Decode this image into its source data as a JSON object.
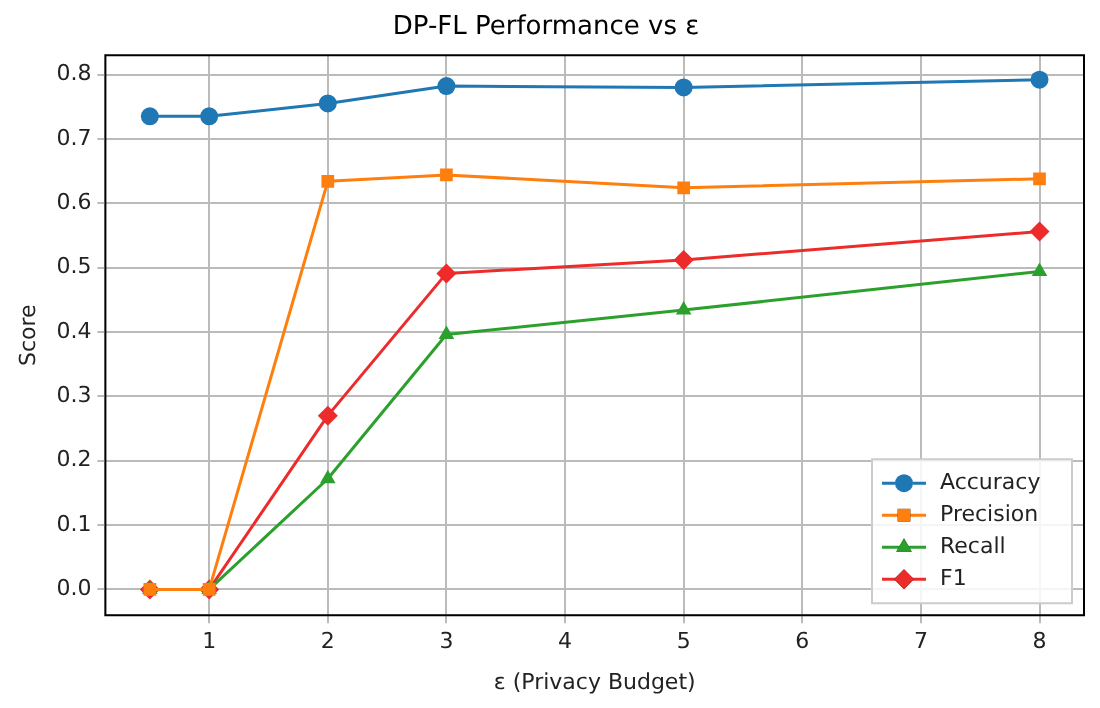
{
  "chart_data": {
    "type": "line",
    "title": "DP-FL Performance vs ε",
    "xlabel": "ε (Privacy Budget)",
    "ylabel": "Score",
    "x": [
      0.5,
      1,
      2,
      3,
      5,
      8
    ],
    "xlim": [
      0.125,
      8.375
    ],
    "xticks": [
      1,
      2,
      3,
      4,
      5,
      6,
      7,
      8
    ],
    "ylim": [
      -0.04,
      0.83
    ],
    "yticks": [
      {
        "value": 0,
        "label": "0.0"
      },
      0.1,
      0.2,
      0.3,
      0.4,
      0.5,
      0.6,
      0.7,
      0.8
    ],
    "grid": true,
    "legend": "bottom right",
    "line_style": "solid",
    "series": [
      {
        "name": "Accuracy",
        "color": "#1f77b4",
        "marker": "circle",
        "values": [
          0.735,
          0.735,
          0.755,
          0.782,
          0.78,
          0.792
        ]
      },
      {
        "name": "Precision",
        "color": "#ff7f0e",
        "marker": "square",
        "values": [
          0,
          0,
          0.634,
          0.644,
          0.624,
          0.638
        ]
      },
      {
        "name": "Recall",
        "color": "#2ca02c",
        "marker": "triangle",
        "values": [
          0,
          0,
          0.172,
          0.396,
          0.434,
          0.494
        ]
      },
      {
        "name": "F1",
        "color": "#ee2b2b",
        "marker": "diamond",
        "values": [
          0,
          0,
          0.27,
          0.491,
          0.512,
          0.556
        ]
      }
    ]
  }
}
